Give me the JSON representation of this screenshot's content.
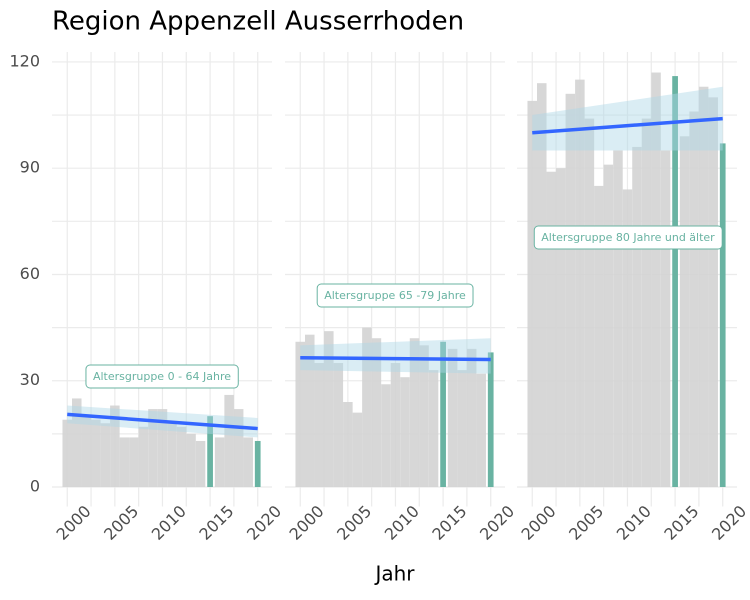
{
  "chart_data": {
    "type": "bar",
    "title": "Region Appenzell Ausserrhoden",
    "x_label": "Jahr",
    "xlim": [
      1998.4,
      2021.5
    ],
    "xticks": [
      2000,
      2005,
      2010,
      2015,
      2020
    ],
    "ylim": [
      -5.5,
      122.8
    ],
    "yticks": [
      0,
      30,
      60,
      90,
      120
    ],
    "grid": true,
    "color": "#d3d3d3",
    "highlight_color": "#69b3a2",
    "highlight_x": [
      2015,
      2020
    ],
    "trend_color": "#3366ff",
    "band_color": "#add8e6",
    "facets": [
      {
        "annotation": "Altersgruppe 0 - 64 Jahre",
        "x": [
          2000,
          2001,
          2002,
          2003,
          2004,
          2005,
          2006,
          2007,
          2008,
          2009,
          2010,
          2011,
          2012,
          2013,
          2014,
          2015,
          2016,
          2017,
          2018,
          2019,
          2020
        ],
        "values": [
          19,
          25,
          20,
          19,
          18,
          23,
          14,
          14,
          17,
          22,
          22,
          18,
          17,
          15,
          13,
          20,
          14,
          26,
          22,
          14,
          13
        ],
        "trend": {
          "x": [
            2000,
            2020
          ],
          "values": [
            20.5,
            16.5
          ],
          "ci_lower": [
            18,
            14
          ],
          "ci_upper": [
            23,
            19.5
          ]
        }
      },
      {
        "annotation": "Altersgruppe 65 -79 Jahre",
        "x": [
          2000,
          2001,
          2002,
          2003,
          2004,
          2005,
          2006,
          2007,
          2008,
          2009,
          2010,
          2011,
          2012,
          2013,
          2014,
          2015,
          2016,
          2017,
          2018,
          2019,
          2020
        ],
        "values": [
          41,
          43,
          35,
          44,
          35,
          24,
          21,
          45,
          42,
          29,
          35,
          31,
          42,
          40,
          33,
          41,
          39,
          33,
          39,
          32,
          38
        ],
        "trend": {
          "x": [
            2000,
            2020
          ],
          "values": [
            36.5,
            36
          ],
          "ci_lower": [
            33,
            32
          ],
          "ci_upper": [
            40,
            42
          ]
        }
      },
      {
        "annotation": "Altersgruppe 80 Jahre und älter",
        "x": [
          2000,
          2001,
          2002,
          2003,
          2004,
          2005,
          2006,
          2007,
          2008,
          2009,
          2010,
          2011,
          2012,
          2013,
          2014,
          2015,
          2016,
          2017,
          2018,
          2019,
          2020
        ],
        "values": [
          109,
          114,
          89,
          90,
          111,
          115,
          104,
          85,
          91,
          95,
          84,
          96,
          104,
          117,
          95,
          116,
          99,
          106,
          113,
          110,
          97
        ],
        "trend": {
          "x": [
            2000,
            2020
          ],
          "values": [
            100,
            104
          ],
          "ci_lower": [
            95,
            95
          ],
          "ci_upper": [
            105,
            113
          ]
        }
      }
    ]
  }
}
